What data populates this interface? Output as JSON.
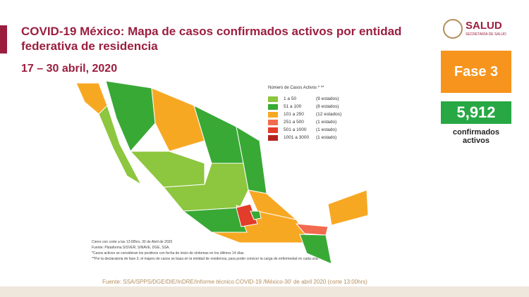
{
  "header": {
    "title": "COVID-19 México: Mapa de casos confirmados activos por entidad federativa de residencia",
    "date": "17 – 30 abril, 2020",
    "logo": "SALUD",
    "logo_sub": "SECRETARÍA DE SALUD"
  },
  "phase": "Fase 3",
  "total": {
    "value": "5,912",
    "label": "confirmados activos"
  },
  "legend": {
    "title": "Número de Casos Activos * **",
    "items": [
      {
        "range": "1 a 50",
        "count": "(9 estados)",
        "color": "#8dc63f"
      },
      {
        "range": "51 a 100",
        "count": "(8 estados)",
        "color": "#39a935"
      },
      {
        "range": "101 a 250",
        "count": "(12 estados)",
        "color": "#f7a823"
      },
      {
        "range": "251 a 500",
        "count": "(1 estado)",
        "color": "#f26b4f"
      },
      {
        "range": "501 a 1000",
        "count": "(1 estado)",
        "color": "#e23c2a"
      },
      {
        "range": "1001 a 3000",
        "count": "(1 estado)",
        "color": "#b5231f"
      }
    ]
  },
  "notes": [
    "Cierre con corte a las 13:00hrs, 30 de Abril de 2020",
    "Fuente: Plataforma SISVER, SINAVE, DGE, SSA.",
    "*Casos activos se consideran los positivos con fecha de inicio de síntomas en los últimos 14 días.",
    "**Por la declaratoria de fase 3, el mapeo de casos se basa en la entidad de residencia, para poder conocer la carga de enfermedad en cada una."
  ],
  "footer": "Fuente: SSA/SPPS/DGE/DIE/InDRE/Informe técnico.COVID-19 /México-30' de abril 2020 (corte 13:00hrs)"
}
